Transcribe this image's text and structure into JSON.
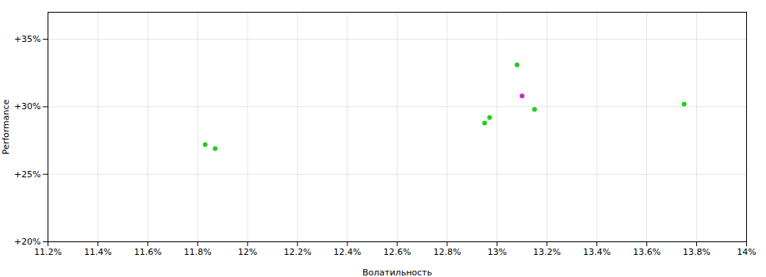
{
  "chart_data": {
    "type": "scatter",
    "xlabel": "Волатильность",
    "ylabel": "Performance",
    "xlim": [
      0.112,
      0.14
    ],
    "ylim": [
      0.2,
      0.37
    ],
    "xticks": [
      {
        "value": 0.112,
        "label": "11.2%"
      },
      {
        "value": 0.114,
        "label": "11.4%"
      },
      {
        "value": 0.116,
        "label": "11.6%"
      },
      {
        "value": 0.118,
        "label": "11.8%"
      },
      {
        "value": 0.12,
        "label": "12%"
      },
      {
        "value": 0.122,
        "label": "12.2%"
      },
      {
        "value": 0.124,
        "label": "12.4%"
      },
      {
        "value": 0.126,
        "label": "12.6%"
      },
      {
        "value": 0.128,
        "label": "12.8%"
      },
      {
        "value": 0.13,
        "label": "13%"
      },
      {
        "value": 0.132,
        "label": "13.2%"
      },
      {
        "value": 0.134,
        "label": "13.4%"
      },
      {
        "value": 0.136,
        "label": "13.6%"
      },
      {
        "value": 0.138,
        "label": "13.8%"
      },
      {
        "value": 0.14,
        "label": "14%"
      }
    ],
    "yticks": [
      {
        "value": 0.2,
        "label": "+20%"
      },
      {
        "value": 0.25,
        "label": "+25%"
      },
      {
        "value": 0.3,
        "label": "+30%"
      },
      {
        "value": 0.35,
        "label": "+35%"
      }
    ],
    "grid": true,
    "series": [
      {
        "color": "#22cc22",
        "x": [
          0.1183,
          0.1187,
          0.1295,
          0.1297,
          0.1308,
          0.1315,
          0.1375
        ],
        "values": [
          0.272,
          0.269,
          0.288,
          0.292,
          0.331,
          0.298,
          0.302
        ]
      },
      {
        "color": "#cc22cc",
        "x": [
          0.131
        ],
        "values": [
          0.308
        ]
      }
    ]
  }
}
